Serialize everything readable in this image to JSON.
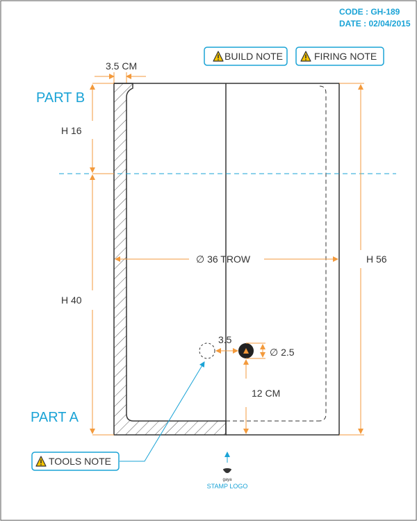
{
  "header": {
    "code": "CODE : GH-189",
    "date": "DATE : 02/04/2015"
  },
  "notes": {
    "build": "BUILD NOTE",
    "firing": "FIRING NOTE",
    "tools": "TOOLS NOTE"
  },
  "parts": {
    "top": "PART B",
    "bottom": "PART A"
  },
  "dimensions": {
    "wall_thickness": "3.5 CM",
    "part_b_height": "H 16",
    "part_a_height": "H 40",
    "total_height": "H 56",
    "diameter": "∅ 36 TROW",
    "hole_spacing": "3.5",
    "hole_diameter": "∅ 2.5",
    "hole_height": "12 CM"
  },
  "logo": {
    "brand": "gaya",
    "caption": "STAMP LOGO"
  },
  "colors": {
    "accent_blue": "#1aa3d6",
    "dim_orange": "#f39a3c",
    "outline": "#333333"
  }
}
